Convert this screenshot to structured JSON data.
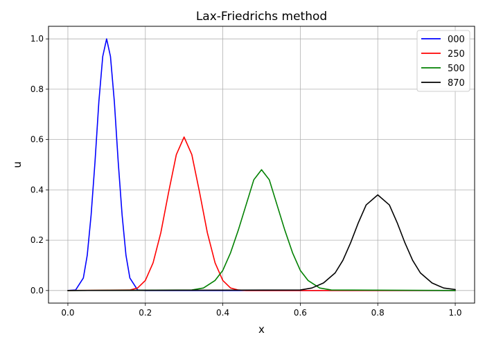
{
  "chart_data": {
    "type": "line",
    "title": "Lax-Friedrichs method",
    "xlabel": "x",
    "ylabel": "u",
    "xlim": [
      -0.05,
      1.05
    ],
    "ylim": [
      -0.05,
      1.05
    ],
    "xticks": [
      0.0,
      0.2,
      0.4,
      0.6,
      0.8,
      1.0
    ],
    "xtick_labels": [
      "0.0",
      "0.2",
      "0.4",
      "0.6",
      "0.8",
      "1.0"
    ],
    "yticks": [
      0.0,
      0.2,
      0.4,
      0.6,
      0.8,
      1.0
    ],
    "ytick_labels": [
      "0.0",
      "0.2",
      "0.4",
      "0.6",
      "0.8",
      "1.0"
    ],
    "grid": true,
    "legend_position": "top-right",
    "series": [
      {
        "name": "000",
        "color": "#0000ff",
        "x": [
          0.0,
          0.02,
          0.04,
          0.05,
          0.06,
          0.07,
          0.08,
          0.09,
          0.1,
          0.11,
          0.12,
          0.13,
          0.14,
          0.15,
          0.16,
          0.18,
          0.2,
          1.0
        ],
        "y": [
          0.0,
          0.002,
          0.05,
          0.14,
          0.3,
          0.51,
          0.75,
          0.93,
          1.0,
          0.93,
          0.75,
          0.51,
          0.3,
          0.14,
          0.05,
          0.002,
          0.0,
          0.0
        ]
      },
      {
        "name": "250",
        "color": "#ff0000",
        "x": [
          0.0,
          0.16,
          0.18,
          0.2,
          0.22,
          0.24,
          0.26,
          0.28,
          0.3,
          0.32,
          0.34,
          0.36,
          0.38,
          0.4,
          0.42,
          0.44,
          0.46,
          1.0
        ],
        "y": [
          0.0,
          0.002,
          0.01,
          0.04,
          0.11,
          0.23,
          0.39,
          0.54,
          0.61,
          0.54,
          0.39,
          0.23,
          0.11,
          0.04,
          0.01,
          0.002,
          0.0,
          0.0
        ]
      },
      {
        "name": "500",
        "color": "#008000",
        "x": [
          0.0,
          0.32,
          0.35,
          0.38,
          0.4,
          0.42,
          0.44,
          0.46,
          0.48,
          0.5,
          0.52,
          0.54,
          0.56,
          0.58,
          0.6,
          0.62,
          0.65,
          0.68,
          1.0
        ],
        "y": [
          0.0,
          0.002,
          0.01,
          0.04,
          0.08,
          0.15,
          0.24,
          0.34,
          0.44,
          0.48,
          0.44,
          0.34,
          0.24,
          0.15,
          0.08,
          0.04,
          0.01,
          0.002,
          0.0
        ]
      },
      {
        "name": "870",
        "color": "#000000",
        "x": [
          0.0,
          0.6,
          0.63,
          0.66,
          0.69,
          0.71,
          0.73,
          0.75,
          0.77,
          0.8,
          0.83,
          0.85,
          0.87,
          0.89,
          0.91,
          0.94,
          0.97,
          1.0
        ],
        "y": [
          0.0,
          0.002,
          0.01,
          0.03,
          0.07,
          0.12,
          0.19,
          0.27,
          0.34,
          0.38,
          0.34,
          0.27,
          0.19,
          0.12,
          0.07,
          0.03,
          0.01,
          0.004
        ]
      }
    ]
  }
}
